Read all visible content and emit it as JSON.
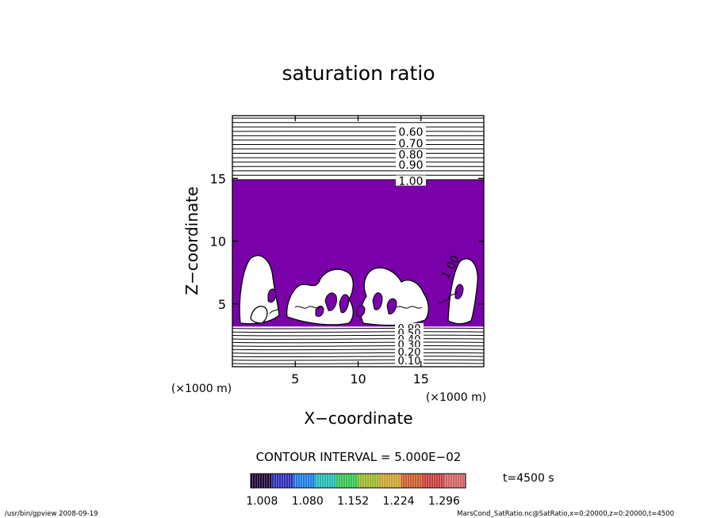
{
  "chart_data": {
    "type": "contour",
    "title": "saturation ratio",
    "xlabel": "X−coordinate",
    "ylabel": "Z−coordinate",
    "x_unit_label": "(×1000 m)",
    "y_unit_label": "(×1000 m)",
    "xlim": [
      0,
      20
    ],
    "ylim": [
      0,
      20
    ],
    "x_ticks": [
      5,
      10,
      15
    ],
    "y_ticks": [
      5,
      10,
      15
    ],
    "x_tick_labels": [
      "5",
      "10",
      "15"
    ],
    "y_tick_labels": [
      "5",
      "10",
      "15"
    ],
    "contour_interval_text": "CONTOUR INTERVAL = 5.000E−02",
    "contour_labels_upper": [
      "0.60",
      "0.70",
      "0.80",
      "0.90",
      "1.00"
    ],
    "contour_label_upper_values": [
      0.6,
      0.7,
      0.8,
      0.9,
      1.0
    ],
    "contour_labels_lower": [
      "0.90",
      "0.50",
      "0.40",
      "0.30",
      "0.20",
      "0.10"
    ],
    "contour_label_lower_z": [
      3.1,
      2.7,
      2.2,
      1.8,
      1.2,
      0.5
    ],
    "contour_label_right": "1.00",
    "supersaturated_layer_z": [
      3.2,
      14.9
    ],
    "fill_color": "#7a00aa",
    "colorbar": {
      "tick_labels": [
        "1.008",
        "1.080",
        "1.152",
        "1.224",
        "1.296"
      ],
      "tick_values": [
        1.008,
        1.08,
        1.152,
        1.224,
        1.296
      ],
      "range": [
        0.99,
        1.33
      ],
      "colors": [
        "#1a0033",
        "#2a2bb5",
        "#1a7ae0",
        "#20b8b0",
        "#34c34a",
        "#9ab62a",
        "#c9a12e",
        "#c95a2a",
        "#c43a3a",
        "#d06060"
      ]
    },
    "time_label": "t=4500 s",
    "footer_left": "/usr/bin/gpview   2008-09-19",
    "footer_right": "MarsCond_SatRatio.nc@SatRatio,x=0:20000,z=0:20000,t=4500"
  }
}
